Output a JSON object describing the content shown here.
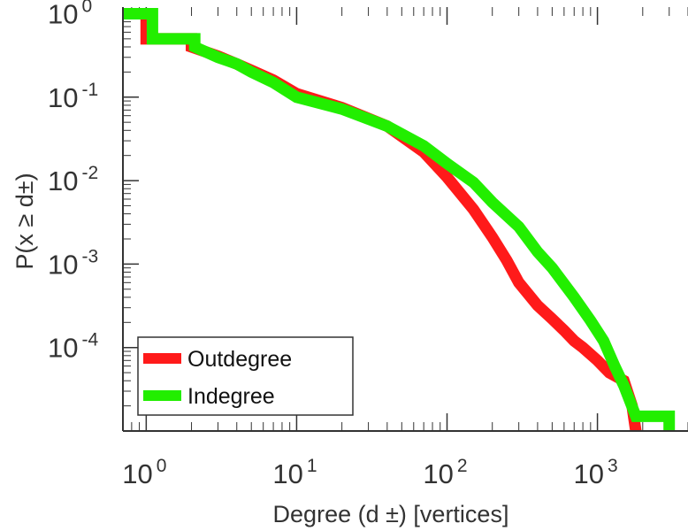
{
  "chart_data": {
    "type": "line",
    "scale": {
      "x": "log",
      "y": "log"
    },
    "xlim": [
      0.7,
      4000
    ],
    "ylim": [
      1e-05,
      1.2
    ],
    "xlabel": "Degree (d ±) [vertices]",
    "ylabel": "P(x ≥ d±)",
    "x_ticks": [
      {
        "base": "10",
        "exp": "0",
        "value": 1
      },
      {
        "base": "10",
        "exp": "1",
        "value": 10
      },
      {
        "base": "10",
        "exp": "2",
        "value": 100
      },
      {
        "base": "10",
        "exp": "3",
        "value": 1000
      }
    ],
    "y_ticks": [
      {
        "base": "10",
        "exp": "0",
        "value": 1
      },
      {
        "base": "10",
        "exp": "-1",
        "value": 0.1
      },
      {
        "base": "10",
        "exp": "-2",
        "value": 0.01
      },
      {
        "base": "10",
        "exp": "-3",
        "value": 0.001
      },
      {
        "base": "10",
        "exp": "-4",
        "value": 0.0001
      }
    ],
    "legend": {
      "position": "bottom-left",
      "entries": [
        "Outdegree",
        "Indegree"
      ]
    },
    "series": [
      {
        "name": "Outdegree",
        "color": "#ff1a1a",
        "x": [
          0.7,
          1,
          1,
          2,
          2,
          3,
          4,
          5,
          7,
          10,
          20,
          40,
          70,
          100,
          150,
          200,
          250,
          300,
          400,
          500,
          600,
          700,
          800,
          1000,
          1200,
          1500,
          1700,
          1800
        ],
        "y": [
          1,
          1,
          0.5,
          0.5,
          0.4,
          0.31,
          0.25,
          0.21,
          0.16,
          0.11,
          0.075,
          0.045,
          0.022,
          0.011,
          0.0045,
          0.0021,
          0.0011,
          0.0006,
          0.00032,
          0.00022,
          0.00016,
          0.00012,
          0.0001,
          7e-05,
          5e-05,
          4e-05,
          2e-05,
          1e-05
        ]
      },
      {
        "name": "Indegree",
        "color": "#22ee00",
        "x": [
          0.7,
          1.1,
          1.1,
          2.1,
          2.1,
          3,
          4,
          5,
          7,
          10,
          20,
          40,
          70,
          100,
          150,
          200,
          300,
          400,
          500,
          700,
          900,
          1100,
          1300,
          1500,
          1800,
          3000,
          3000
        ],
        "y": [
          1,
          1,
          0.5,
          0.5,
          0.4,
          0.3,
          0.25,
          0.2,
          0.15,
          0.1,
          0.072,
          0.045,
          0.026,
          0.016,
          0.0095,
          0.0055,
          0.0028,
          0.0014,
          0.0009,
          0.0004,
          0.00021,
          0.00012,
          6e-05,
          3.5e-05,
          1.5e-05,
          1.5e-05,
          1e-05
        ]
      }
    ]
  }
}
